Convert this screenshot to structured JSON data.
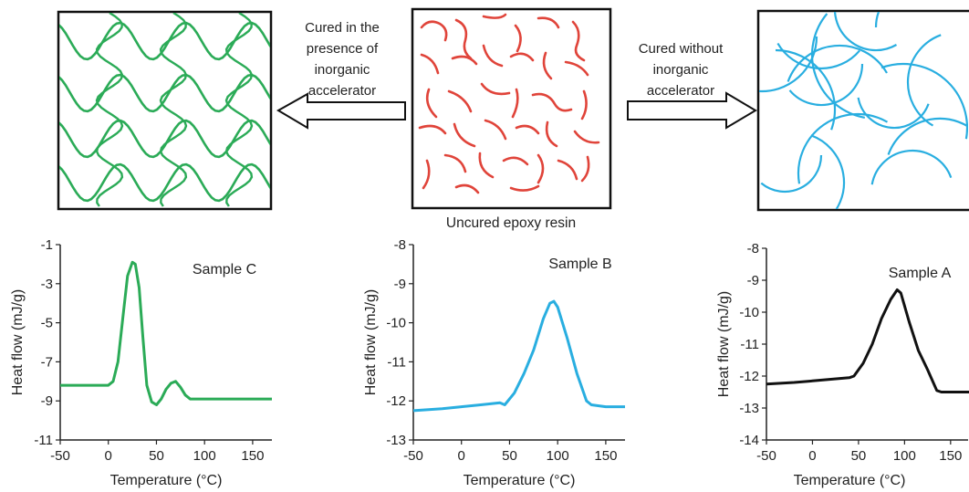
{
  "colors": {
    "green": "#2bab57",
    "red": "#e0443a",
    "blue": "#29aee0",
    "black": "#111111"
  },
  "labels": {
    "left_process": [
      "Cured in the",
      "presence of",
      "inorganic",
      "accelerator"
    ],
    "right_process": [
      "Cured without",
      "inorganic",
      "accelerator"
    ],
    "center_caption": "Uncured epoxy resin"
  },
  "chart_data": [
    {
      "type": "line",
      "title": "Sample C",
      "xlabel": "Temperature (°C)",
      "ylabel": "Heat flow (mJ/g)",
      "xlim": [
        -50,
        170
      ],
      "ylim": [
        -11,
        -1
      ],
      "xticks": [
        -50,
        0,
        50,
        100,
        150
      ],
      "yticks": [
        -1,
        -3,
        -5,
        -7,
        -9,
        -11
      ],
      "color": "#2bab57",
      "series": [
        {
          "x": [
            -50,
            0,
            5,
            10,
            15,
            20,
            25,
            28,
            32,
            36,
            40,
            45,
            50,
            55,
            60,
            65,
            70,
            75,
            80,
            85,
            90,
            100,
            120,
            150,
            170
          ],
          "y": [
            -8.2,
            -8.2,
            -8.0,
            -7.0,
            -4.8,
            -2.6,
            -1.9,
            -2.0,
            -3.2,
            -5.8,
            -8.2,
            -9.05,
            -9.2,
            -8.9,
            -8.4,
            -8.1,
            -8.0,
            -8.3,
            -8.7,
            -8.9,
            -8.9,
            -8.9,
            -8.9,
            -8.9,
            -8.9
          ]
        }
      ]
    },
    {
      "type": "line",
      "title": "Sample B",
      "xlabel": "Temperature (°C)",
      "ylabel": "Heat flow (mJ/g)",
      "xlim": [
        -50,
        170
      ],
      "ylim": [
        -13,
        -8
      ],
      "xticks": [
        -50,
        0,
        50,
        100,
        150
      ],
      "yticks": [
        -8,
        -9,
        -10,
        -11,
        -12,
        -13
      ],
      "color": "#29aee0",
      "series": [
        {
          "x": [
            -50,
            -20,
            0,
            20,
            40,
            45,
            55,
            65,
            75,
            85,
            92,
            96,
            100,
            110,
            120,
            130,
            135,
            150,
            170
          ],
          "y": [
            -12.25,
            -12.2,
            -12.15,
            -12.1,
            -12.05,
            -12.1,
            -11.8,
            -11.3,
            -10.7,
            -9.9,
            -9.5,
            -9.45,
            -9.6,
            -10.4,
            -11.3,
            -12.0,
            -12.1,
            -12.15,
            -12.15
          ]
        }
      ]
    },
    {
      "type": "line",
      "title": "Sample A",
      "xlabel": "Temperature (°C)",
      "ylabel": "Heat flow (mJ/g)",
      "xlim": [
        -50,
        170
      ],
      "ylim": [
        -14,
        -8
      ],
      "xticks": [
        -50,
        0,
        50,
        100,
        150
      ],
      "yticks": [
        -8,
        -9,
        -10,
        -11,
        -12,
        -13,
        -14
      ],
      "color": "#111111",
      "series": [
        {
          "x": [
            -50,
            -20,
            0,
            20,
            40,
            45,
            55,
            65,
            75,
            85,
            92,
            96,
            105,
            115,
            125,
            135,
            140,
            150,
            170
          ],
          "y": [
            -12.25,
            -12.2,
            -12.15,
            -12.1,
            -12.05,
            -12.0,
            -11.6,
            -11.0,
            -10.2,
            -9.6,
            -9.3,
            -9.4,
            -10.3,
            -11.2,
            -11.8,
            -12.45,
            -12.5,
            -12.5,
            -12.5
          ]
        }
      ]
    }
  ]
}
